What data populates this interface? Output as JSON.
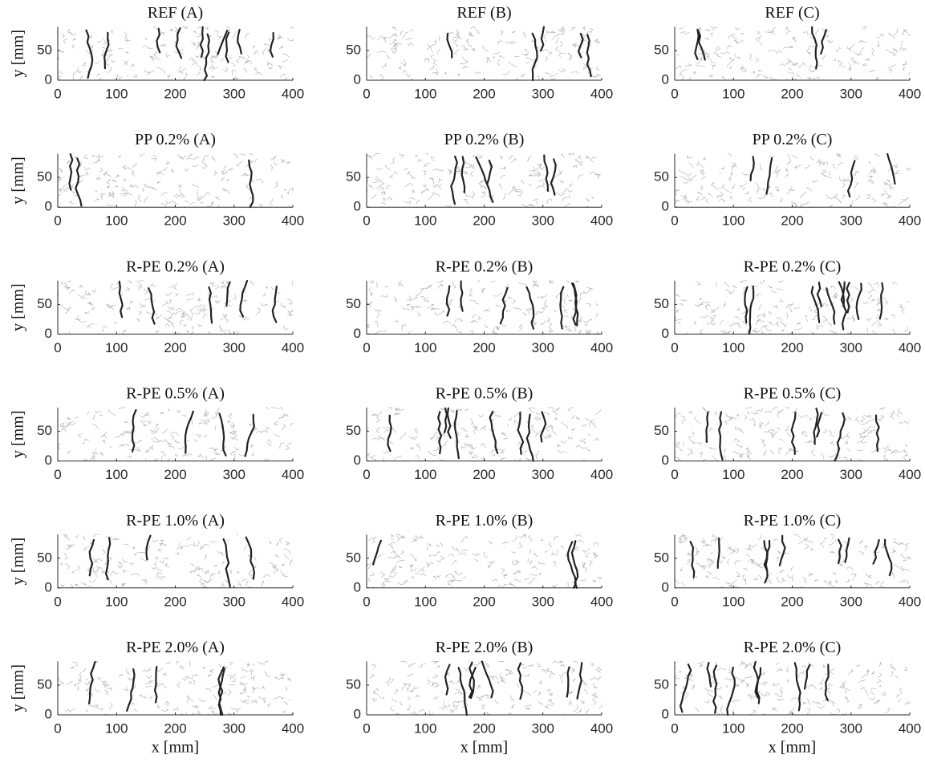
{
  "chart_data": [
    {
      "type": "image",
      "title": "REF (A)",
      "ylabel": "y [mm]",
      "xlim": [
        0,
        400
      ],
      "ylim": [
        0,
        90
      ],
      "xticks": [
        0,
        100,
        200,
        300,
        400
      ],
      "yticks": [
        0,
        50
      ]
    },
    {
      "type": "image",
      "title": "REF (B)",
      "xlim": [
        0,
        400
      ],
      "ylim": [
        0,
        90
      ],
      "xticks": [
        0,
        100,
        200,
        300,
        400
      ],
      "yticks": [
        0,
        50
      ]
    },
    {
      "type": "image",
      "title": "REF (C)",
      "xlim": [
        0,
        400
      ],
      "ylim": [
        0,
        90
      ],
      "xticks": [
        0,
        100,
        200,
        300,
        400
      ],
      "yticks": [
        0,
        50
      ]
    },
    {
      "type": "image",
      "title": "PP 0.2% (A)",
      "ylabel": "y [mm]",
      "xlim": [
        0,
        400
      ],
      "ylim": [
        0,
        90
      ],
      "xticks": [
        0,
        100,
        200,
        300,
        400
      ],
      "yticks": [
        0,
        50
      ]
    },
    {
      "type": "image",
      "title": "PP 0.2% (B)",
      "xlim": [
        0,
        400
      ],
      "ylim": [
        0,
        90
      ],
      "xticks": [
        0,
        100,
        200,
        300,
        400
      ],
      "yticks": [
        0,
        50
      ]
    },
    {
      "type": "image",
      "title": "PP 0.2% (C)",
      "xlim": [
        0,
        400
      ],
      "ylim": [
        0,
        90
      ],
      "xticks": [
        0,
        100,
        200,
        300,
        400
      ],
      "yticks": [
        0,
        50
      ]
    },
    {
      "type": "image",
      "title": "R-PE 0.2% (A)",
      "ylabel": "y [mm]",
      "xlim": [
        0,
        400
      ],
      "ylim": [
        0,
        90
      ],
      "xticks": [
        0,
        100,
        200,
        300,
        400
      ],
      "yticks": [
        0,
        50
      ]
    },
    {
      "type": "image",
      "title": "R-PE 0.2% (B)",
      "xlim": [
        0,
        400
      ],
      "ylim": [
        0,
        90
      ],
      "xticks": [
        0,
        100,
        200,
        300,
        400
      ],
      "yticks": [
        0,
        50
      ]
    },
    {
      "type": "image",
      "title": "R-PE 0.2% (C)",
      "xlim": [
        0,
        400
      ],
      "ylim": [
        0,
        90
      ],
      "xticks": [
        0,
        100,
        200,
        300,
        400
      ],
      "yticks": [
        0,
        50
      ]
    },
    {
      "type": "image",
      "title": "R-PE 0.5% (A)",
      "ylabel": "y [mm]",
      "xlim": [
        0,
        400
      ],
      "ylim": [
        0,
        90
      ],
      "xticks": [
        0,
        100,
        200,
        300,
        400
      ],
      "yticks": [
        0,
        50
      ]
    },
    {
      "type": "image",
      "title": "R-PE 0.5% (B)",
      "xlim": [
        0,
        400
      ],
      "ylim": [
        0,
        90
      ],
      "xticks": [
        0,
        100,
        200,
        300,
        400
      ],
      "yticks": [
        0,
        50
      ]
    },
    {
      "type": "image",
      "title": "R-PE 0.5% (C)",
      "xlim": [
        0,
        400
      ],
      "ylim": [
        0,
        90
      ],
      "xticks": [
        0,
        100,
        200,
        300,
        400
      ],
      "yticks": [
        0,
        50
      ]
    },
    {
      "type": "image",
      "title": "R-PE 1.0% (A)",
      "ylabel": "y [mm]",
      "xlim": [
        0,
        400
      ],
      "ylim": [
        0,
        90
      ],
      "xticks": [
        0,
        100,
        200,
        300,
        400
      ],
      "yticks": [
        0,
        50
      ]
    },
    {
      "type": "image",
      "title": "R-PE 1.0% (B)",
      "xlim": [
        0,
        400
      ],
      "ylim": [
        0,
        90
      ],
      "xticks": [
        0,
        100,
        200,
        300,
        400
      ],
      "yticks": [
        0,
        50
      ]
    },
    {
      "type": "image",
      "title": "R-PE 1.0% (C)",
      "xlim": [
        0,
        400
      ],
      "ylim": [
        0,
        90
      ],
      "xticks": [
        0,
        100,
        200,
        300,
        400
      ],
      "yticks": [
        0,
        50
      ]
    },
    {
      "type": "image",
      "title": "R-PE 2.0% (A)",
      "ylabel": "y [mm]",
      "xlabel": "x [mm]",
      "xlim": [
        0,
        400
      ],
      "ylim": [
        0,
        90
      ],
      "xticks": [
        0,
        100,
        200,
        300,
        400
      ],
      "yticks": [
        0,
        50
      ]
    },
    {
      "type": "image",
      "title": "R-PE 2.0% (B)",
      "xlabel": "x [mm]",
      "xlim": [
        0,
        400
      ],
      "ylim": [
        0,
        90
      ],
      "xticks": [
        0,
        100,
        200,
        300,
        400
      ],
      "yticks": [
        0,
        50
      ]
    },
    {
      "type": "image",
      "title": "R-PE 2.0% (C)",
      "xlabel": "x [mm]",
      "xlim": [
        0,
        400
      ],
      "ylim": [
        0,
        90
      ],
      "xticks": [
        0,
        100,
        200,
        300,
        400
      ],
      "yticks": [
        0,
        50
      ]
    }
  ]
}
